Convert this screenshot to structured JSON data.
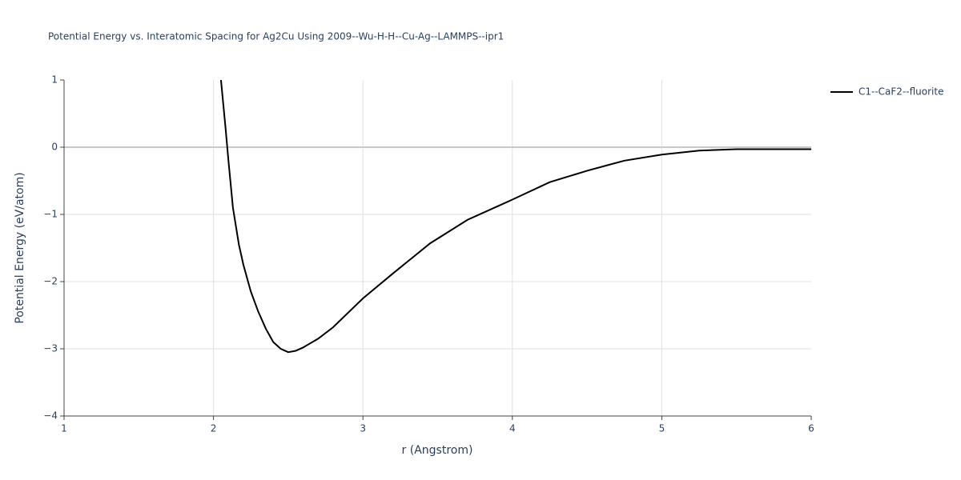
{
  "chart_data": {
    "type": "line",
    "title": "Potential Energy vs. Interatomic Spacing for Ag2Cu Using 2009--Wu-H-H--Cu-Ag--LAMMPS--ipr1",
    "x_label": "r (Angstrom)",
    "y_label": "Potential Energy (eV/atom)",
    "x": [
      2.05,
      2.08,
      2.1,
      2.13,
      2.17,
      2.2,
      2.25,
      2.3,
      2.35,
      2.4,
      2.45,
      2.5,
      2.55,
      2.6,
      2.7,
      2.8,
      3.0,
      3.2,
      3.45,
      3.6,
      3.7,
      3.9,
      4.0,
      4.25,
      4.5,
      4.75,
      5.0,
      5.25,
      5.5,
      6.0
    ],
    "series": [
      {
        "name": "C1--CaF2--fluorite",
        "color": "#000000",
        "values": [
          1.0,
          0.3,
          -0.2,
          -0.9,
          -1.45,
          -1.75,
          -2.15,
          -2.45,
          -2.7,
          -2.9,
          -3.0,
          -3.05,
          -3.03,
          -2.98,
          -2.85,
          -2.68,
          -2.25,
          -1.88,
          -1.43,
          -1.22,
          -1.08,
          -0.88,
          -0.78,
          -0.52,
          -0.35,
          -0.2,
          -0.11,
          -0.05,
          -0.03,
          -0.03
        ]
      }
    ],
    "xlim": [
      1,
      6
    ],
    "xticks": [
      1,
      2,
      3,
      4,
      5,
      6
    ],
    "ylim": [
      -4,
      1
    ],
    "yticks": [
      1,
      0,
      {
        "value": -1,
        "label": "−1"
      },
      {
        "value": -2,
        "label": "−2"
      },
      {
        "value": -3,
        "label": "−3"
      },
      {
        "value": -4,
        "label": "−4"
      }
    ],
    "grid": true,
    "legend": "right"
  }
}
